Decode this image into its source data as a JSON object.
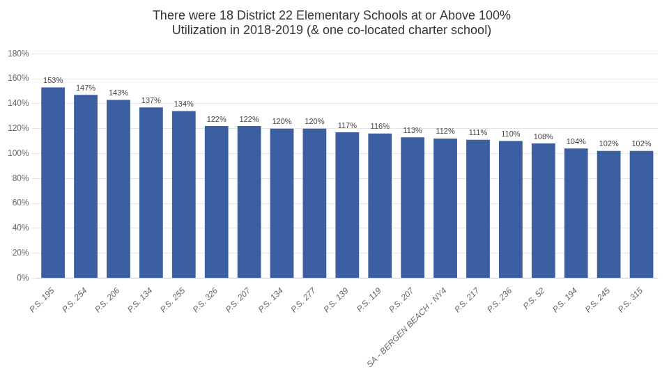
{
  "chart_data": {
    "type": "bar",
    "title": "There were 18 District 22 Elementary Schools at or Above 100%\nUtilization in 2018-2019 (& one co-located charter school)",
    "categories": [
      "P.S. 195",
      "P.S. 254",
      "P.S. 206",
      "P.S. 134",
      "P.S. 255",
      "P.S. 326",
      "P.S. 207",
      "P.S. 134",
      "P.S. 277",
      "P.S. 139",
      "P.S. 119",
      "P.S. 207",
      "SA - BERGEN BEACH - NY4",
      "P.S. 217",
      "P.S. 236",
      "P.S. 52",
      "P.S. 194",
      "P.S. 245",
      "P.S. 315"
    ],
    "values": [
      153,
      147,
      143,
      137,
      134,
      122,
      122,
      120,
      120,
      117,
      116,
      113,
      112,
      111,
      110,
      108,
      104,
      102,
      102
    ],
    "value_labels": [
      "153%",
      "147%",
      "143%",
      "137%",
      "134%",
      "122%",
      "122%",
      "120%",
      "120%",
      "117%",
      "116%",
      "113%",
      "112%",
      "111%",
      "110%",
      "108%",
      "104%",
      "102%",
      "102%"
    ],
    "data_labels": true,
    "color": "#3B5FA0",
    "ylim": [
      0,
      180
    ],
    "yticks": [
      {
        "value": 0,
        "label": "0%"
      },
      {
        "value": 20,
        "label": "20%"
      },
      {
        "value": 40,
        "label": "40%"
      },
      {
        "value": 60,
        "label": "60%"
      },
      {
        "value": 80,
        "label": "80%"
      },
      {
        "value": 100,
        "label": "100%"
      },
      {
        "value": 120,
        "label": "120%"
      },
      {
        "value": 140,
        "label": "140%"
      },
      {
        "value": 160,
        "label": "160%"
      },
      {
        "value": 180,
        "label": "180%"
      }
    ],
    "grid": true
  }
}
